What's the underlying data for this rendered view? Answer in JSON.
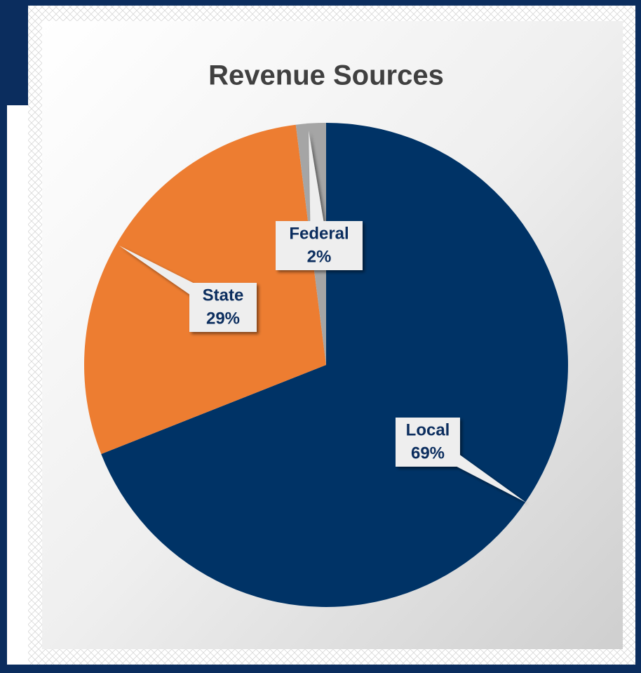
{
  "chart_data": {
    "type": "pie",
    "title": "Revenue Sources",
    "categories": [
      "Local",
      "State",
      "Federal"
    ],
    "values": [
      69,
      29,
      2
    ],
    "value_labels": [
      "69%",
      "29%",
      "2%"
    ],
    "colors": [
      "#003366",
      "#ed7d31",
      "#a5a5a5"
    ]
  }
}
